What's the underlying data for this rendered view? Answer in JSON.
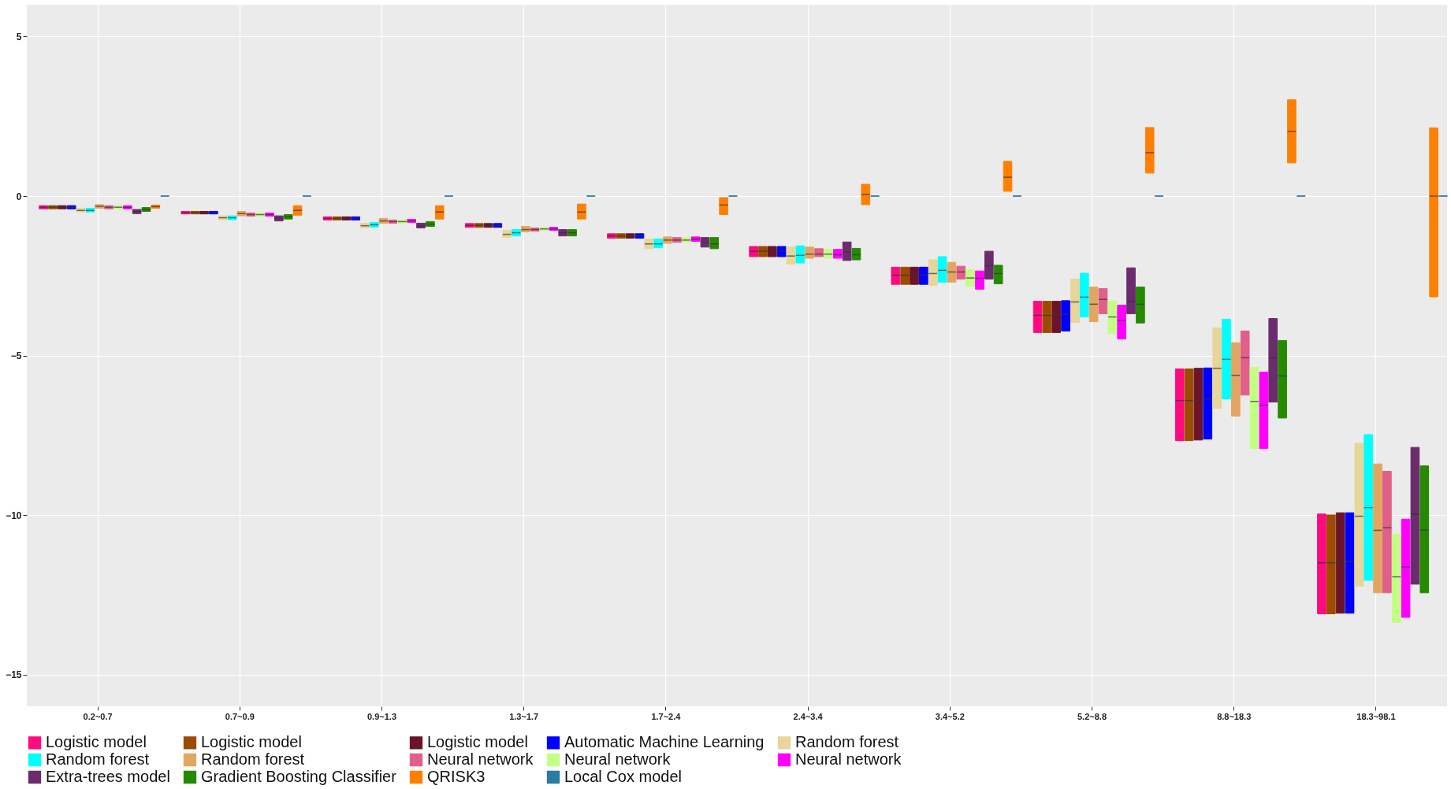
{
  "chart_data": {
    "type": "box",
    "categories": [
      "0.2~0.7",
      "0.7~0.9",
      "0.9~1.3",
      "1.3~1.7",
      "1.7~2.4",
      "2.4~3.4",
      "3.4~5.2",
      "5.2~8.8",
      "8.8~18.3",
      "18.3~98.1"
    ],
    "ylim": [
      -16,
      6
    ],
    "yticks": [
      -15,
      -10,
      -5,
      0,
      5
    ],
    "grid": true,
    "legend": "bottom",
    "series": [
      {
        "name": "Logistic model",
        "color": "#ff0a7f",
        "boxes": [
          {
            "q1": -0.4,
            "median": -0.35,
            "q3": -0.3
          },
          {
            "q1": -0.56,
            "median": -0.52,
            "q3": -0.48
          },
          {
            "q1": -0.75,
            "median": -0.7,
            "q3": -0.65
          },
          {
            "q1": -0.98,
            "median": -0.92,
            "q3": -0.86
          },
          {
            "q1": -1.32,
            "median": -1.25,
            "q3": -1.18
          },
          {
            "q1": -1.9,
            "median": -1.73,
            "q3": -1.58
          },
          {
            "q1": -2.77,
            "median": -2.48,
            "q3": -2.23
          },
          {
            "q1": -4.28,
            "median": -3.74,
            "q3": -3.3
          },
          {
            "q1": -7.67,
            "median": -6.41,
            "q3": -5.42
          },
          {
            "q1": -13.1,
            "median": -11.5,
            "q3": -9.97
          }
        ]
      },
      {
        "name": "Logistic model",
        "color": "#9c4c00",
        "boxes": [
          {
            "q1": -0.4,
            "median": -0.35,
            "q3": -0.3
          },
          {
            "q1": -0.56,
            "median": -0.52,
            "q3": -0.48
          },
          {
            "q1": -0.75,
            "median": -0.7,
            "q3": -0.65
          },
          {
            "q1": -0.98,
            "median": -0.92,
            "q3": -0.86
          },
          {
            "q1": -1.32,
            "median": -1.25,
            "q3": -1.18
          },
          {
            "q1": -1.9,
            "median": -1.73,
            "q3": -1.58
          },
          {
            "q1": -2.77,
            "median": -2.48,
            "q3": -2.23
          },
          {
            "q1": -4.28,
            "median": -3.74,
            "q3": -3.3
          },
          {
            "q1": -7.67,
            "median": -6.41,
            "q3": -5.42
          },
          {
            "q1": -13.1,
            "median": -11.5,
            "q3": -10.0
          }
        ]
      },
      {
        "name": "Logistic model",
        "color": "#6b1428",
        "boxes": [
          {
            "q1": -0.4,
            "median": -0.35,
            "q3": -0.3
          },
          {
            "q1": -0.56,
            "median": -0.52,
            "q3": -0.48
          },
          {
            "q1": -0.75,
            "median": -0.7,
            "q3": -0.65
          },
          {
            "q1": -0.98,
            "median": -0.92,
            "q3": -0.86
          },
          {
            "q1": -1.32,
            "median": -1.25,
            "q3": -1.18
          },
          {
            "q1": -1.9,
            "median": -1.73,
            "q3": -1.58
          },
          {
            "q1": -2.77,
            "median": -2.48,
            "q3": -2.23
          },
          {
            "q1": -4.28,
            "median": -3.74,
            "q3": -3.3
          },
          {
            "q1": -7.65,
            "median": -6.4,
            "q3": -5.4
          },
          {
            "q1": -13.08,
            "median": -11.47,
            "q3": -9.93
          }
        ]
      },
      {
        "name": "Automatic Machine Learning",
        "color": "#0000ff",
        "boxes": [
          {
            "q1": -0.4,
            "median": -0.35,
            "q3": -0.3
          },
          {
            "q1": -0.56,
            "median": -0.52,
            "q3": -0.48
          },
          {
            "q1": -0.75,
            "median": -0.7,
            "q3": -0.65
          },
          {
            "q1": -0.98,
            "median": -0.92,
            "q3": -0.86
          },
          {
            "q1": -1.32,
            "median": -1.25,
            "q3": -1.18
          },
          {
            "q1": -1.9,
            "median": -1.73,
            "q3": -1.58
          },
          {
            "q1": -2.77,
            "median": -2.48,
            "q3": -2.23
          },
          {
            "q1": -4.23,
            "median": -3.7,
            "q3": -3.28
          },
          {
            "q1": -7.62,
            "median": -6.36,
            "q3": -5.39
          },
          {
            "q1": -13.08,
            "median": -11.45,
            "q3": -9.93
          }
        ]
      },
      {
        "name": "Random forest",
        "color": "#e8d59a",
        "boxes": [
          {
            "q1": -0.5,
            "median": -0.45,
            "q3": -0.38
          },
          {
            "q1": -0.74,
            "median": -0.68,
            "q3": -0.62
          },
          {
            "q1": -1.0,
            "median": -0.93,
            "q3": -0.85
          },
          {
            "q1": -1.3,
            "median": -1.2,
            "q3": -1.08
          },
          {
            "q1": -1.65,
            "median": -1.5,
            "q3": -1.35
          },
          {
            "q1": -2.13,
            "median": -1.88,
            "q3": -1.6
          },
          {
            "q1": -2.8,
            "median": -2.43,
            "q3": -2.0
          },
          {
            "q1": -3.96,
            "median": -3.32,
            "q3": -2.6
          },
          {
            "q1": -6.66,
            "median": -5.4,
            "q3": -4.13
          },
          {
            "q1": -12.23,
            "median": -10.04,
            "q3": -7.75
          }
        ]
      },
      {
        "name": "Random forest",
        "color": "#00ffff",
        "boxes": [
          {
            "q1": -0.5,
            "median": -0.45,
            "q3": -0.38
          },
          {
            "q1": -0.74,
            "median": -0.68,
            "q3": -0.62
          },
          {
            "q1": -0.97,
            "median": -0.9,
            "q3": -0.83
          },
          {
            "q1": -1.25,
            "median": -1.15,
            "q3": -1.05
          },
          {
            "q1": -1.62,
            "median": -1.5,
            "q3": -1.35
          },
          {
            "q1": -2.1,
            "median": -1.86,
            "q3": -1.56
          },
          {
            "q1": -2.7,
            "median": -2.33,
            "q3": -1.9
          },
          {
            "q1": -3.79,
            "median": -3.17,
            "q3": -2.42
          },
          {
            "q1": -6.36,
            "median": -5.12,
            "q3": -3.86
          },
          {
            "q1": -12.05,
            "median": -9.77,
            "q3": -7.48
          }
        ]
      },
      {
        "name": "Random forest",
        "color": "#e3a662",
        "boxes": [
          {
            "q1": -0.38,
            "median": -0.32,
            "q3": -0.27
          },
          {
            "q1": -0.62,
            "median": -0.55,
            "q3": -0.48
          },
          {
            "q1": -0.85,
            "median": -0.78,
            "q3": -0.7
          },
          {
            "q1": -1.12,
            "median": -1.05,
            "q3": -0.95
          },
          {
            "q1": -1.48,
            "median": -1.38,
            "q3": -1.28
          },
          {
            "q1": -1.95,
            "median": -1.82,
            "q3": -1.6
          },
          {
            "q1": -2.7,
            "median": -2.38,
            "q3": -2.08
          },
          {
            "q1": -3.94,
            "median": -3.39,
            "q3": -2.85
          },
          {
            "q1": -6.9,
            "median": -5.62,
            "q3": -4.6
          },
          {
            "q1": -12.44,
            "median": -10.48,
            "q3": -8.4
          }
        ]
      },
      {
        "name": "Neural network",
        "color": "#e0608a",
        "boxes": [
          {
            "q1": -0.4,
            "median": -0.35,
            "q3": -0.3
          },
          {
            "q1": -0.63,
            "median": -0.58,
            "q3": -0.53
          },
          {
            "q1": -0.85,
            "median": -0.8,
            "q3": -0.75
          },
          {
            "q1": -1.1,
            "median": -1.05,
            "q3": -1.0
          },
          {
            "q1": -1.45,
            "median": -1.38,
            "q3": -1.3
          },
          {
            "q1": -1.9,
            "median": -1.82,
            "q3": -1.65
          },
          {
            "q1": -2.6,
            "median": -2.38,
            "q3": -2.2
          },
          {
            "q1": -3.69,
            "median": -3.24,
            "q3": -2.9
          },
          {
            "q1": -6.24,
            "median": -5.07,
            "q3": -4.23
          },
          {
            "q1": -12.44,
            "median": -10.4,
            "q3": -8.63
          }
        ]
      },
      {
        "name": "Neural network",
        "color": "#c3ff85",
        "boxes": [
          {
            "q1": -0.4,
            "median": -0.35,
            "q3": -0.3
          },
          {
            "q1": -0.63,
            "median": -0.58,
            "q3": -0.53
          },
          {
            "q1": -0.85,
            "median": -0.8,
            "q3": -0.75
          },
          {
            "q1": -1.08,
            "median": -1.03,
            "q3": -0.98
          },
          {
            "q1": -1.45,
            "median": -1.38,
            "q3": -1.3
          },
          {
            "q1": -1.95,
            "median": -1.82,
            "q3": -1.67
          },
          {
            "q1": -2.83,
            "median": -2.57,
            "q3": -2.3
          },
          {
            "q1": -4.31,
            "median": -3.79,
            "q3": -3.29
          },
          {
            "q1": -7.92,
            "median": -6.44,
            "q3": -5.37
          },
          {
            "q1": -13.37,
            "median": -11.94,
            "q3": -10.6
          }
        ]
      },
      {
        "name": "Neural network",
        "color": "#ff00ff",
        "boxes": [
          {
            "q1": -0.4,
            "median": -0.35,
            "q3": -0.3
          },
          {
            "q1": -0.63,
            "median": -0.58,
            "q3": -0.53
          },
          {
            "q1": -0.83,
            "median": -0.78,
            "q3": -0.73
          },
          {
            "q1": -1.08,
            "median": -1.03,
            "q3": -0.98
          },
          {
            "q1": -1.42,
            "median": -1.35,
            "q3": -1.28
          },
          {
            "q1": -1.95,
            "median": -1.84,
            "q3": -1.67
          },
          {
            "q1": -2.92,
            "median": -2.58,
            "q3": -2.35
          },
          {
            "q1": -4.48,
            "median": -3.9,
            "q3": -3.42
          },
          {
            "q1": -7.92,
            "median": -6.56,
            "q3": -5.52
          },
          {
            "q1": -13.21,
            "median": -11.63,
            "q3": -10.13
          }
        ]
      },
      {
        "name": "Extra-trees model",
        "color": "#6b2c6e",
        "boxes": [
          {
            "q1": -0.55,
            "median": -0.48,
            "q3": -0.42
          },
          {
            "q1": -0.78,
            "median": -0.7,
            "q3": -0.62
          },
          {
            "q1": -1.0,
            "median": -0.93,
            "q3": -0.85
          },
          {
            "q1": -1.25,
            "median": -1.15,
            "q3": -1.05
          },
          {
            "q1": -1.6,
            "median": -1.45,
            "q3": -1.3
          },
          {
            "q1": -2.02,
            "median": -1.76,
            "q3": -1.44
          },
          {
            "q1": -2.6,
            "median": -2.18,
            "q3": -1.73
          },
          {
            "q1": -3.69,
            "median": -3.3,
            "q3": -2.25
          },
          {
            "q1": -6.46,
            "median": -5.07,
            "q3": -3.84
          },
          {
            "q1": -12.17,
            "median": -9.97,
            "q3": -7.88
          }
        ]
      },
      {
        "name": "Gradient Boosting Classifier",
        "color": "#268a00",
        "boxes": [
          {
            "q1": -0.48,
            "median": -0.42,
            "q3": -0.36
          },
          {
            "q1": -0.72,
            "median": -0.65,
            "q3": -0.58
          },
          {
            "q1": -0.95,
            "median": -0.88,
            "q3": -0.8
          },
          {
            "q1": -1.25,
            "median": -1.15,
            "q3": -1.05
          },
          {
            "q1": -1.65,
            "median": -1.5,
            "q3": -1.3
          },
          {
            "q1": -2.0,
            "median": -1.84,
            "q3": -1.64
          },
          {
            "q1": -2.75,
            "median": -2.43,
            "q3": -2.17
          },
          {
            "q1": -3.98,
            "median": -3.39,
            "q3": -2.85
          },
          {
            "q1": -6.96,
            "median": -5.64,
            "q3": -4.53
          },
          {
            "q1": -12.44,
            "median": -10.47,
            "q3": -8.46
          }
        ]
      },
      {
        "name": "QRISK3",
        "color": "#ff8000",
        "boxes": [
          {
            "q1": -0.38,
            "median": -0.33,
            "q3": -0.28
          },
          {
            "q1": -0.6,
            "median": -0.45,
            "q3": -0.3
          },
          {
            "q1": -0.72,
            "median": -0.5,
            "q3": -0.3
          },
          {
            "q1": -0.72,
            "median": -0.5,
            "q3": -0.25
          },
          {
            "q1": -0.58,
            "median": -0.28,
            "q3": -0.05
          },
          {
            "q1": -0.27,
            "median": 0.05,
            "q3": 0.37
          },
          {
            "q1": 0.15,
            "median": 0.59,
            "q3": 1.09
          },
          {
            "q1": 0.72,
            "median": 1.36,
            "q3": 2.15
          },
          {
            "q1": 1.04,
            "median": 2.03,
            "q3": 3.02
          },
          {
            "q1": -3.16,
            "median": 0,
            "q3": 2.14
          }
        ]
      },
      {
        "name": "Local Cox model",
        "color": "#2b7ba3",
        "boxes": [
          {
            "q1": 0,
            "median": 0,
            "q3": 0
          },
          {
            "q1": 0,
            "median": 0,
            "q3": 0
          },
          {
            "q1": 0,
            "median": 0,
            "q3": 0
          },
          {
            "q1": 0,
            "median": 0,
            "q3": 0
          },
          {
            "q1": 0,
            "median": 0,
            "q3": 0
          },
          {
            "q1": 0,
            "median": 0,
            "q3": 0
          },
          {
            "q1": 0,
            "median": 0,
            "q3": 0
          },
          {
            "q1": 0,
            "median": 0,
            "q3": 0
          },
          {
            "q1": 0,
            "median": 0,
            "q3": 0
          },
          {
            "q1": 0,
            "median": 0,
            "q3": 0
          }
        ]
      }
    ]
  }
}
